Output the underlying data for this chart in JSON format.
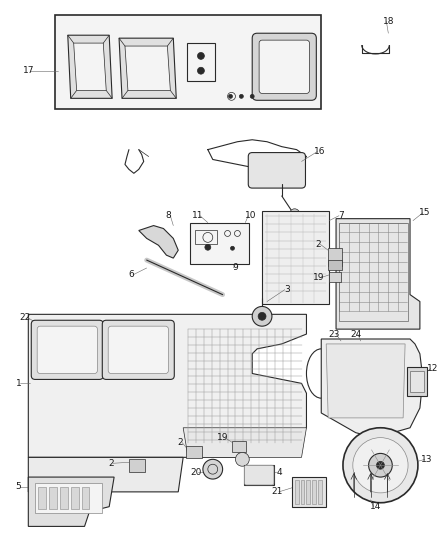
{
  "bg_color": "#ffffff",
  "line_color": "#2a2a2a",
  "fig_width": 4.38,
  "fig_height": 5.33,
  "dpi": 100,
  "label_fontsize": 6.5,
  "label_color": "#1a1a1a",
  "gray_fill": "#e8e8e8",
  "light_fill": "#f4f4f4"
}
